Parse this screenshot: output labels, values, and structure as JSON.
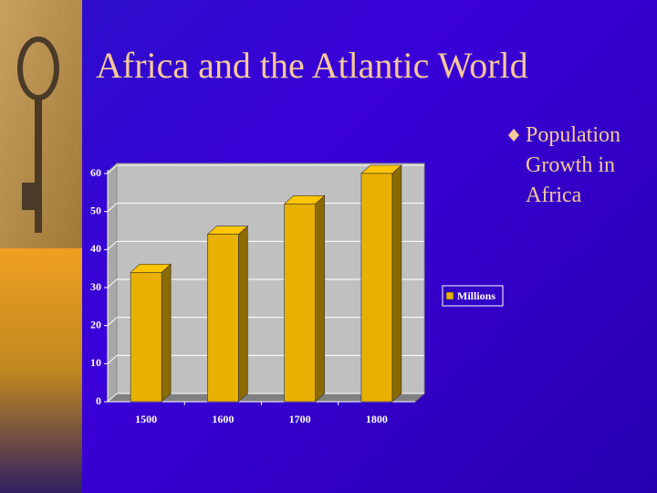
{
  "slide": {
    "title": "Africa and the Atlantic World",
    "bullet": "Population Growth in Africa"
  },
  "chart_data": {
    "type": "bar",
    "categories": [
      "1500",
      "1600",
      "1700",
      "1800"
    ],
    "series": [
      {
        "name": "Millions",
        "color": "#e8b000",
        "values": [
          34,
          44,
          52,
          60
        ]
      }
    ],
    "ylim": [
      0,
      60
    ],
    "yticks": [
      0,
      10,
      20,
      30,
      40,
      50,
      60
    ],
    "grid": true,
    "legend": "right"
  }
}
